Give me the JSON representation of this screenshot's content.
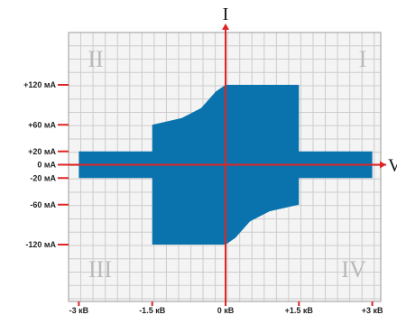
{
  "chart_data": {
    "type": "area",
    "x_axis": {
      "label": "V",
      "min": -3,
      "max": 3,
      "ticks": [
        {
          "value": -3,
          "label": "-3 кВ"
        },
        {
          "value": -1.5,
          "label": "-1.5 кВ"
        },
        {
          "value": 0,
          "label": "0 кВ"
        },
        {
          "value": 1.5,
          "label": "+1.5 кВ"
        },
        {
          "value": 3,
          "label": "+3 кВ"
        }
      ]
    },
    "y_axis": {
      "label": "I",
      "min": -160,
      "max": 160,
      "ticks": [
        {
          "value": 120,
          "label": "+120 мА"
        },
        {
          "value": 60,
          "label": "+60 мА"
        },
        {
          "value": 20,
          "label": "+20 мА"
        },
        {
          "value": 0,
          "label": "0 мА"
        },
        {
          "value": -20,
          "label": "-20 мА"
        },
        {
          "value": -60,
          "label": "-60 мА"
        },
        {
          "value": -120,
          "label": "-120 мА"
        }
      ]
    },
    "quadrants": [
      {
        "id": "II",
        "label": "II",
        "position": "top-left"
      },
      {
        "id": "I",
        "label": "I",
        "position": "top-right"
      },
      {
        "id": "III",
        "label": "III",
        "position": "bottom-left"
      },
      {
        "id": "IV",
        "label": "IV",
        "position": "bottom-right"
      }
    ],
    "series": [
      {
        "color": "#0a73ad",
        "polygon": [
          {
            "x": -3,
            "y": 20
          },
          {
            "x": -1.5,
            "y": 20
          },
          {
            "x": -1.5,
            "y": 60
          },
          {
            "x": -0.9,
            "y": 70
          },
          {
            "x": -0.5,
            "y": 85
          },
          {
            "x": -0.2,
            "y": 110
          },
          {
            "x": 0,
            "y": 120
          },
          {
            "x": 1.5,
            "y": 120
          },
          {
            "x": 1.5,
            "y": 20
          },
          {
            "x": 3,
            "y": 20
          },
          {
            "x": 3,
            "y": -20
          },
          {
            "x": 1.5,
            "y": -20
          },
          {
            "x": 1.5,
            "y": -60
          },
          {
            "x": 0.9,
            "y": -70
          },
          {
            "x": 0.5,
            "y": -85
          },
          {
            "x": 0.2,
            "y": -110
          },
          {
            "x": 0,
            "y": -120
          },
          {
            "x": -1.5,
            "y": -120
          },
          {
            "x": -1.5,
            "y": -20
          },
          {
            "x": -3,
            "y": -20
          }
        ]
      }
    ],
    "grid": true,
    "colors": {
      "fill": "#0a73ad",
      "axis": "#e02424",
      "grid": "#cccccc"
    }
  }
}
